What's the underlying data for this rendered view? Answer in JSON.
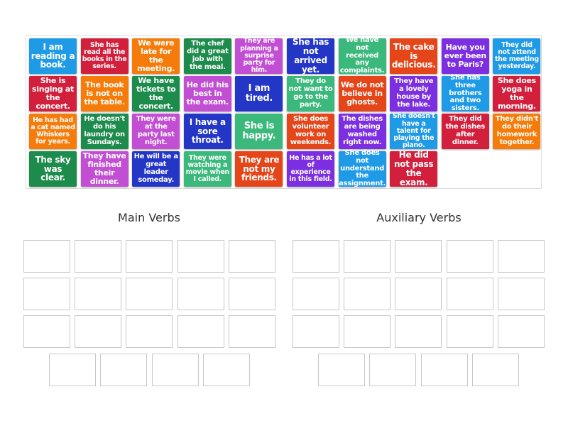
{
  "palette": {
    "lightblue": "#1f9ae6",
    "red": "#d21f3c",
    "orange": "#f57c0a",
    "darkgreen": "#1d8b4c",
    "pink": "#c24fd3",
    "darkblue": "#2336c6",
    "teal": "#3bb87b",
    "redorange": "#e4461a",
    "purple": "#7b2fe0"
  },
  "cards": [
    {
      "text": "I am reading a book.",
      "color": "lightblue"
    },
    {
      "text": "She has read all the books in the series.",
      "color": "red"
    },
    {
      "text": "We were late for the meeting.",
      "color": "orange"
    },
    {
      "text": "The chef did a great job with the meal.",
      "color": "darkgreen"
    },
    {
      "text": "They are planning a surprise party for him.",
      "color": "pink"
    },
    {
      "text": "She has not arrived yet.",
      "color": "darkblue"
    },
    {
      "text": "We have not received any complaints.",
      "color": "teal"
    },
    {
      "text": "The cake is delicious.",
      "color": "redorange"
    },
    {
      "text": "Have you ever been to Paris?",
      "color": "purple"
    },
    {
      "text": "They did not attend the meeting yesterday.",
      "color": "lightblue"
    },
    {
      "text": "She is singing at the concert.",
      "color": "red"
    },
    {
      "text": "The book is not on the table.",
      "color": "orange"
    },
    {
      "text": "We have tickets to the concert.",
      "color": "darkgreen"
    },
    {
      "text": "He did his best in the exam.",
      "color": "pink"
    },
    {
      "text": "I am tired.",
      "color": "darkblue"
    },
    {
      "text": "They do not want to go to the party.",
      "color": "teal"
    },
    {
      "text": "We do not believe in ghosts.",
      "color": "redorange"
    },
    {
      "text": "They have a lovely house by the lake.",
      "color": "purple"
    },
    {
      "text": "She has three brothers and two sisters.",
      "color": "lightblue"
    },
    {
      "text": "She does yoga in the morning.",
      "color": "red"
    },
    {
      "text": "He has had a cat named Whiskers for years.",
      "color": "orange"
    },
    {
      "text": "He doesn't do his laundry on Sundays.",
      "color": "darkgreen"
    },
    {
      "text": "They were at the party last night.",
      "color": "pink"
    },
    {
      "text": "I have a sore throat.",
      "color": "darkblue"
    },
    {
      "text": "She is happy.",
      "color": "teal"
    },
    {
      "text": "She does volunteer work on weekends.",
      "color": "redorange"
    },
    {
      "text": "The dishes are being washed right now.",
      "color": "purple"
    },
    {
      "text": "She doesn't have a talent for playing the piano.",
      "color": "lightblue"
    },
    {
      "text": "They did the dishes after dinner.",
      "color": "red"
    },
    {
      "text": "They didn't do their homework together.",
      "color": "orange"
    },
    {
      "text": "The sky was clear.",
      "color": "darkgreen"
    },
    {
      "text": "They have finished their dinner.",
      "color": "pink"
    },
    {
      "text": "He will be a great leader someday.",
      "color": "darkblue"
    },
    {
      "text": "They were watching a movie when I called.",
      "color": "teal"
    },
    {
      "text": "They are not my friends.",
      "color": "redorange"
    },
    {
      "text": "He has a lot of experience in this field.",
      "color": "purple"
    },
    {
      "text": "She does not understand the assignment.",
      "color": "lightblue"
    },
    {
      "text": "He did not pass the exam.",
      "color": "red"
    }
  ],
  "groups": [
    {
      "title": "Main Verbs"
    },
    {
      "title": "Auxiliary Verbs"
    }
  ]
}
